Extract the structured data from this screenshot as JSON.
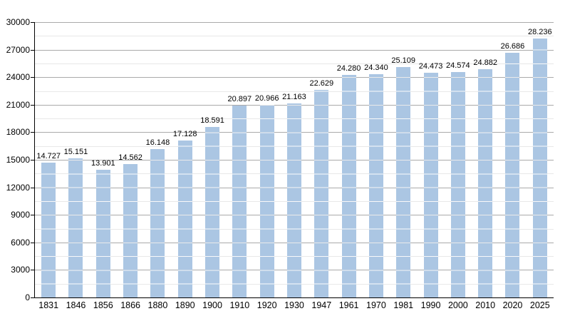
{
  "chart_data": {
    "type": "bar",
    "title": "",
    "xlabel": "",
    "ylabel": "",
    "categories": [
      "1831",
      "1846",
      "1856",
      "1866",
      "1880",
      "1890",
      "1900",
      "1910",
      "1920",
      "1930",
      "1947",
      "1961",
      "1970",
      "1981",
      "1990",
      "2000",
      "2010",
      "2020",
      "2025"
    ],
    "values": [
      14727,
      15151,
      13901,
      14562,
      16148,
      17128,
      18591,
      20897,
      20966,
      21163,
      22629,
      24280,
      24340,
      25109,
      24473,
      24574,
      24882,
      26686,
      28236
    ],
    "value_labels": [
      "14.727",
      "15.151",
      "13.901",
      "14.562",
      "16.148",
      "17.128",
      "18.591",
      "20.897",
      "20.966",
      "21.163",
      "22.629",
      "24.280",
      "24.340",
      "25.109",
      "24.473",
      "24.574",
      "24.882",
      "26.686",
      "28.236"
    ],
    "ylim": [
      0,
      30000
    ],
    "ytick_labels": [
      "0",
      "3000",
      "6000",
      "9000",
      "12000",
      "15000",
      "18000",
      "21000",
      "24000",
      "27000",
      "30000"
    ],
    "ytick_step": 3000,
    "minor_tick_step": 1500,
    "grid": true,
    "legend": false,
    "colors": {
      "background": "#ffffff",
      "bar": "#abc6e3",
      "bar_gridline_overlay": "rgba(255,255,255,0.75)",
      "major_grid": "#aaaaaa",
      "minor_grid": "#e8e8e8",
      "axis": "#000000",
      "text": "#000000"
    }
  }
}
